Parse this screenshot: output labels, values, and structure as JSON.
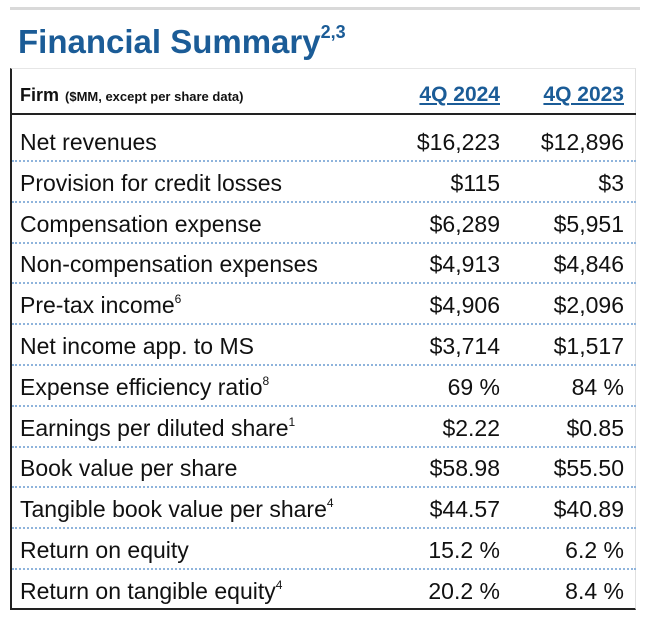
{
  "header": {
    "title": "Financial Summary",
    "title_note": "2,3"
  },
  "table": {
    "columns": {
      "label": "Firm",
      "label_note": "($MM, except per share data)",
      "periods": [
        "4Q 2024",
        "4Q 2023"
      ]
    },
    "rows": [
      {
        "label": "Net revenues",
        "values": [
          "$16,223",
          "$12,896"
        ]
      },
      {
        "label": "Provision for credit losses",
        "values": [
          "$115",
          "$3"
        ]
      },
      {
        "label": "Compensation expense",
        "values": [
          "$6,289",
          "$5,951"
        ]
      },
      {
        "label": "Non-compensation expenses",
        "values": [
          "$4,913",
          "$4,846"
        ]
      },
      {
        "label": "Pre-tax income",
        "note": "6",
        "values": [
          "$4,906",
          "$2,096"
        ]
      },
      {
        "label": "Net income app. to MS",
        "values": [
          "$3,714",
          "$1,517"
        ]
      },
      {
        "label": "Expense efficiency ratio",
        "note": "8",
        "values": [
          "69 %",
          "84 %"
        ]
      },
      {
        "label": "Earnings per diluted share",
        "note": "1",
        "values": [
          "$2.22",
          "$0.85"
        ]
      },
      {
        "label": "Book value per share",
        "values": [
          "$58.98",
          "$55.50"
        ]
      },
      {
        "label": "Tangible book value per share",
        "note": "4",
        "values": [
          "$44.57",
          "$40.89"
        ]
      },
      {
        "label": "Return on equity",
        "values": [
          "15.2 %",
          "6.2 %"
        ]
      },
      {
        "label": "Return on tangible equity",
        "note": "4",
        "values": [
          "20.2 %",
          "8.4 %"
        ]
      }
    ]
  }
}
